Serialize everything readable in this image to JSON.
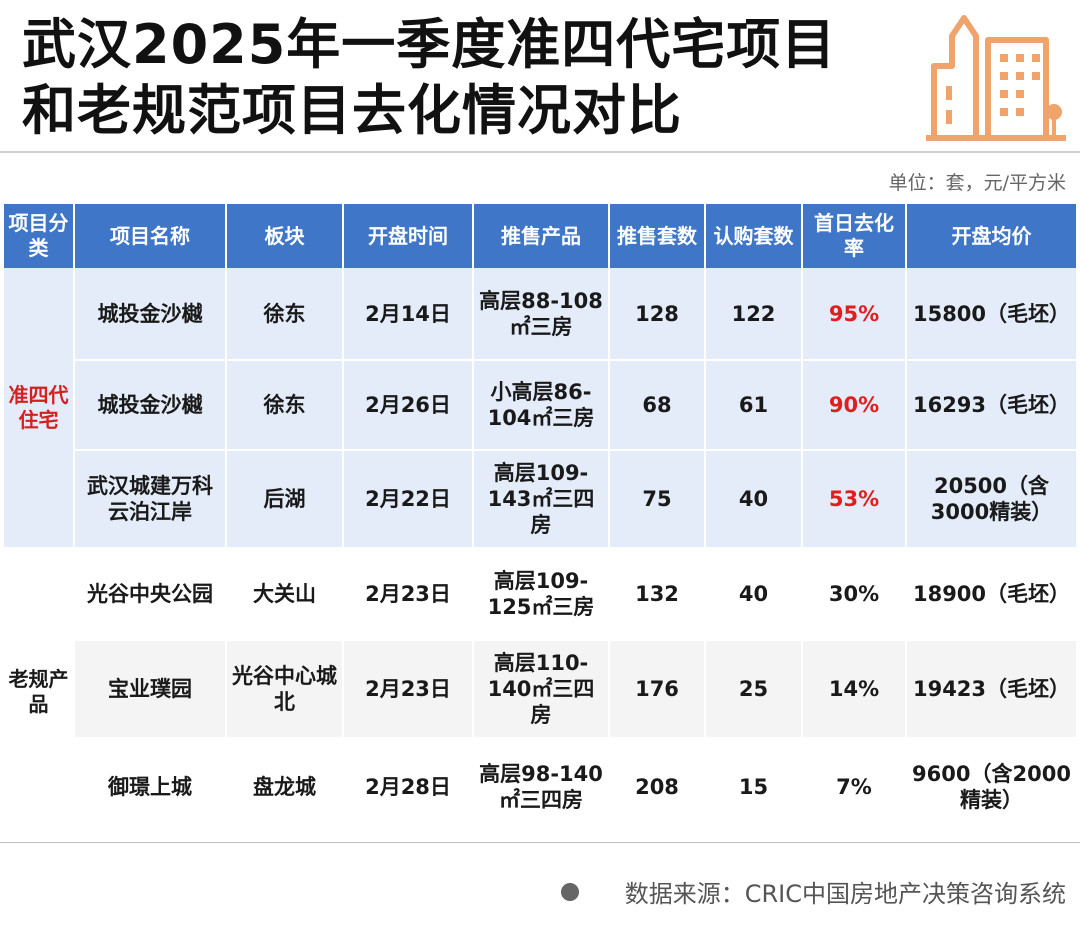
{
  "title": {
    "line1": "武汉2025年一季度准四代宅项目",
    "line2": "和老规范项目去化情况对比"
  },
  "icons": {
    "header": "building-icon"
  },
  "unit_note": "单位：套，元/平方米",
  "table": {
    "headers": {
      "category": "项目分类",
      "name": "项目名称",
      "block": "板块",
      "open_date": "开盘时间",
      "product": "推售产品",
      "supply": "推售套数",
      "subscribed": "认购套数",
      "first_day_rate": "首日去化率",
      "avg_price": "开盘均价"
    },
    "groups": [
      {
        "category": "准四代住宅",
        "rows": [
          {
            "name": "城投金沙樾",
            "block": "徐东",
            "open_date": "2月14日",
            "product": "高层88-108㎡三房",
            "supply": "128",
            "subscribed": "122",
            "rate": "95%",
            "price": "15800（毛坯）"
          },
          {
            "name": "城投金沙樾",
            "block": "徐东",
            "open_date": "2月26日",
            "product": "小高层86-104㎡三房",
            "supply": "68",
            "subscribed": "61",
            "rate": "90%",
            "price": "16293（毛坯）"
          },
          {
            "name": "武汉城建万科云泊江岸",
            "block": "后湖",
            "open_date": "2月22日",
            "product": "高层109-143㎡三四房",
            "supply": "75",
            "subscribed": "40",
            "rate": "53%",
            "price": "20500（含3000精装）"
          }
        ]
      },
      {
        "category": "老规产品",
        "rows": [
          {
            "name": "光谷中央公园",
            "block": "大关山",
            "open_date": "2月23日",
            "product": "高层109-125㎡三房",
            "supply": "132",
            "subscribed": "40",
            "rate": "30%",
            "price": "18900（毛坯）"
          },
          {
            "name": "宝业璞园",
            "block": "光谷中心城北",
            "open_date": "2月23日",
            "product": "高层110-140㎡三四房",
            "supply": "176",
            "subscribed": "25",
            "rate": "14%",
            "price": "19423（毛坯）"
          },
          {
            "name": "御璟上城",
            "block": "盘龙城",
            "open_date": "2月28日",
            "product": "高层98-140㎡三四房",
            "supply": "208",
            "subscribed": "15",
            "rate": "7%",
            "price": "9600（含2000精装）"
          }
        ]
      }
    ]
  },
  "source": "数据来源：CRIC中国房地产决策咨询系统",
  "colors": {
    "header_bg": "#3f76c8",
    "new_group_bg": "#e3ecf8",
    "highlight_red": "#e01e1e",
    "icon_orange": "#f0a36b"
  }
}
